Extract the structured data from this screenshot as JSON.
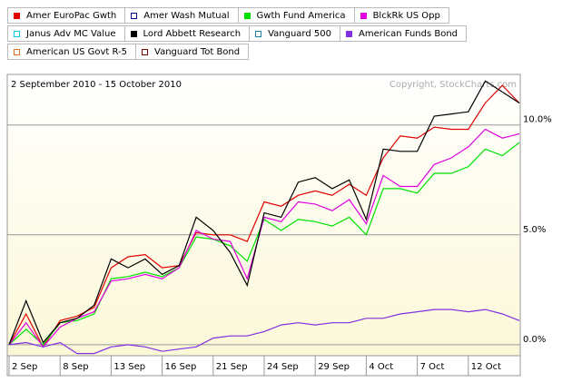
{
  "chart_data": {
    "type": "line",
    "subtitle": "2 September 2010 - 15 October 2010",
    "copyright": "Copyright, StockCharts.com",
    "categories": [
      "2 Sep",
      null,
      null,
      "8 Sep",
      null,
      null,
      "13 Sep",
      null,
      null,
      "16 Sep",
      null,
      null,
      "21 Sep",
      null,
      null,
      "24 Sep",
      null,
      null,
      "29 Sep",
      null,
      null,
      "4 Oct",
      null,
      null,
      "7 Oct",
      null,
      null,
      "12 Oct",
      null,
      null,
      null
    ],
    "ylim": [
      -0.5,
      12.3
    ],
    "yticks": [
      {
        "value": 0,
        "label": "0.0%"
      },
      {
        "value": 5,
        "label": "5.0%"
      },
      {
        "value": 10,
        "label": "10.0%"
      }
    ],
    "grid": true,
    "series": [
      {
        "name": "Amer EuroPac Gwth",
        "color": "#e00000",
        "shown": true,
        "values": [
          0,
          1.4,
          -0.1,
          1.1,
          1.3,
          1.7,
          3.5,
          4.0,
          4.1,
          3.5,
          3.6,
          5.1,
          5.0,
          5.0,
          4.7,
          6.5,
          6.3,
          6.8,
          7.0,
          6.8,
          7.3,
          6.8,
          8.5,
          9.5,
          9.4,
          9.9,
          9.8,
          9.8,
          11.0,
          11.8,
          11.0
        ]
      },
      {
        "name": "Amer Wash Mutual",
        "color": "#000080",
        "shown": false,
        "values": null
      },
      {
        "name": "Gwth Fund America",
        "color": "#00e000",
        "shown": true,
        "values": [
          0,
          0.7,
          0.0,
          1.0,
          1.1,
          1.4,
          3.0,
          3.1,
          3.3,
          3.1,
          3.5,
          4.9,
          4.8,
          4.5,
          3.8,
          5.7,
          5.2,
          5.7,
          5.6,
          5.4,
          5.8,
          5.0,
          7.1,
          7.1,
          6.9,
          7.8,
          7.8,
          8.1,
          8.9,
          8.6,
          9.2
        ]
      },
      {
        "name": "BlckRk US Opp",
        "color": "#e000e0",
        "shown": true,
        "values": [
          0,
          1.0,
          -0.1,
          0.8,
          1.2,
          1.5,
          2.9,
          3.0,
          3.2,
          3.0,
          3.5,
          5.2,
          4.8,
          4.7,
          3.0,
          5.8,
          5.6,
          6.5,
          6.4,
          6.1,
          6.6,
          5.5,
          7.7,
          7.2,
          7.2,
          8.2,
          8.5,
          9.0,
          9.8,
          9.4,
          9.6
        ]
      },
      {
        "name": "Janus Adv MC Value",
        "color": "#00d0e0",
        "shown": false,
        "values": null
      },
      {
        "name": "Lord Abbett Research",
        "color": "#000000",
        "shown": true,
        "values": [
          0,
          2.0,
          0.1,
          1.0,
          1.2,
          1.8,
          3.9,
          3.5,
          3.9,
          3.2,
          3.6,
          5.8,
          5.2,
          4.2,
          2.7,
          6.0,
          5.8,
          7.4,
          7.6,
          7.1,
          7.5,
          5.7,
          8.9,
          8.8,
          8.8,
          10.4,
          10.5,
          10.6,
          12.0,
          11.5,
          11.0
        ]
      },
      {
        "name": "Vanguard 500",
        "color": "#2080a0",
        "shown": false,
        "values": null
      },
      {
        "name": "American Funds Bond",
        "color": "#8030e0",
        "shown": true,
        "values": [
          0,
          0.1,
          -0.1,
          0.1,
          -0.4,
          -0.4,
          -0.1,
          0.0,
          -0.1,
          -0.3,
          -0.2,
          -0.1,
          0.3,
          0.4,
          0.4,
          0.6,
          0.9,
          1.0,
          0.9,
          1.0,
          1.0,
          1.2,
          1.2,
          1.4,
          1.5,
          1.6,
          1.6,
          1.5,
          1.6,
          1.4,
          1.1
        ]
      },
      {
        "name": "American US Govt R-5",
        "color": "#e07020",
        "shown": false,
        "values": null
      },
      {
        "name": "Vanguard Tot Bond",
        "color": "#800000",
        "shown": false,
        "values": null
      }
    ]
  }
}
